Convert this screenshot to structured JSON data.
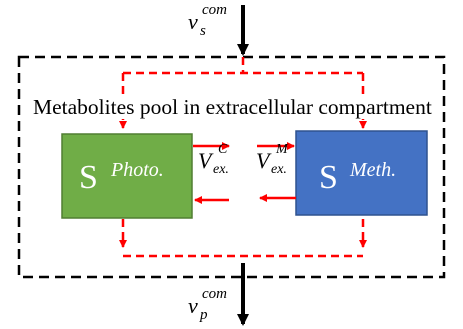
{
  "pool_title": "Metabolites pool in extracellular compartment",
  "flux_in": {
    "base": "v",
    "sub": "s",
    "sup": "com"
  },
  "flux_out": {
    "base": "v",
    "sub": "p",
    "sup": "com"
  },
  "species": [
    {
      "prefix": "S",
      "name": "Photo.",
      "fill": "#70ad47",
      "stroke": "#507e32"
    },
    {
      "prefix": "S",
      "name": "Meth.",
      "fill": "#4472c4",
      "stroke": "#2f528f"
    }
  ],
  "exchange_c": {
    "base": "V",
    "sub": "ex.",
    "sup": "C"
  },
  "exchange_m": {
    "base": "V",
    "sub": "ex.",
    "sup": "M"
  },
  "colors": {
    "flow": "#ff0000",
    "boundary": "#000000",
    "text_on_box": "#ffffff"
  }
}
